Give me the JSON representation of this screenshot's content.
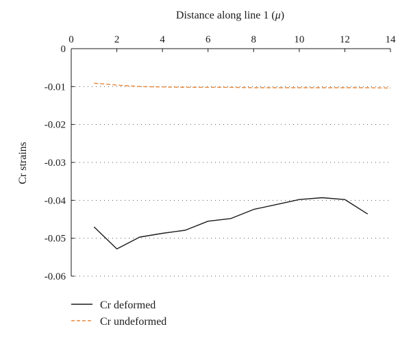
{
  "chart_data": {
    "type": "line",
    "xlabel": "Distance along line 1 (",
    "xlabel_unit": "μ",
    "xlabel_close": ")",
    "ylabel": "Cr strains",
    "xlim": [
      0,
      14
    ],
    "ylim": [
      -0.06,
      0
    ],
    "x_ticks": [
      0,
      2,
      4,
      6,
      8,
      10,
      12,
      14
    ],
    "y_ticks": [
      0,
      -0.01,
      -0.02,
      -0.03,
      -0.04,
      -0.05,
      -0.06
    ],
    "x_tick_labels": [
      "0",
      "2",
      "4",
      "6",
      "8",
      "10",
      "12",
      "14"
    ],
    "y_tick_labels": [
      "0",
      "-0.01",
      "-0.02",
      "-0.03",
      "-0.04",
      "-0.05",
      "-0.06"
    ],
    "x_axis_position": "top",
    "grid": "horizontal dotted",
    "legend_position": "bottom-left",
    "series": [
      {
        "name": "Cr deformed",
        "color": "#1a1a1a",
        "style": "solid",
        "x": [
          1,
          2,
          3,
          4,
          5,
          6,
          7,
          8,
          9,
          10,
          11,
          12,
          13
        ],
        "y": [
          -0.047,
          -0.0528,
          -0.0497,
          -0.0487,
          -0.0479,
          -0.0455,
          -0.0448,
          -0.0424,
          -0.0411,
          -0.0398,
          -0.0393,
          -0.0398,
          -0.0436
        ]
      },
      {
        "name": "Cr undeformed",
        "color": "#e8873a",
        "style": "dashed",
        "x": [
          1,
          2,
          3,
          4,
          5,
          6,
          7,
          8,
          9,
          10,
          11,
          12,
          13,
          14
        ],
        "y": [
          -0.0091,
          -0.0096,
          -0.01,
          -0.0101,
          -0.0102,
          -0.0102,
          -0.0102,
          -0.0103,
          -0.0103,
          -0.0103,
          -0.0103,
          -0.0103,
          -0.0103,
          -0.0104
        ]
      }
    ]
  }
}
